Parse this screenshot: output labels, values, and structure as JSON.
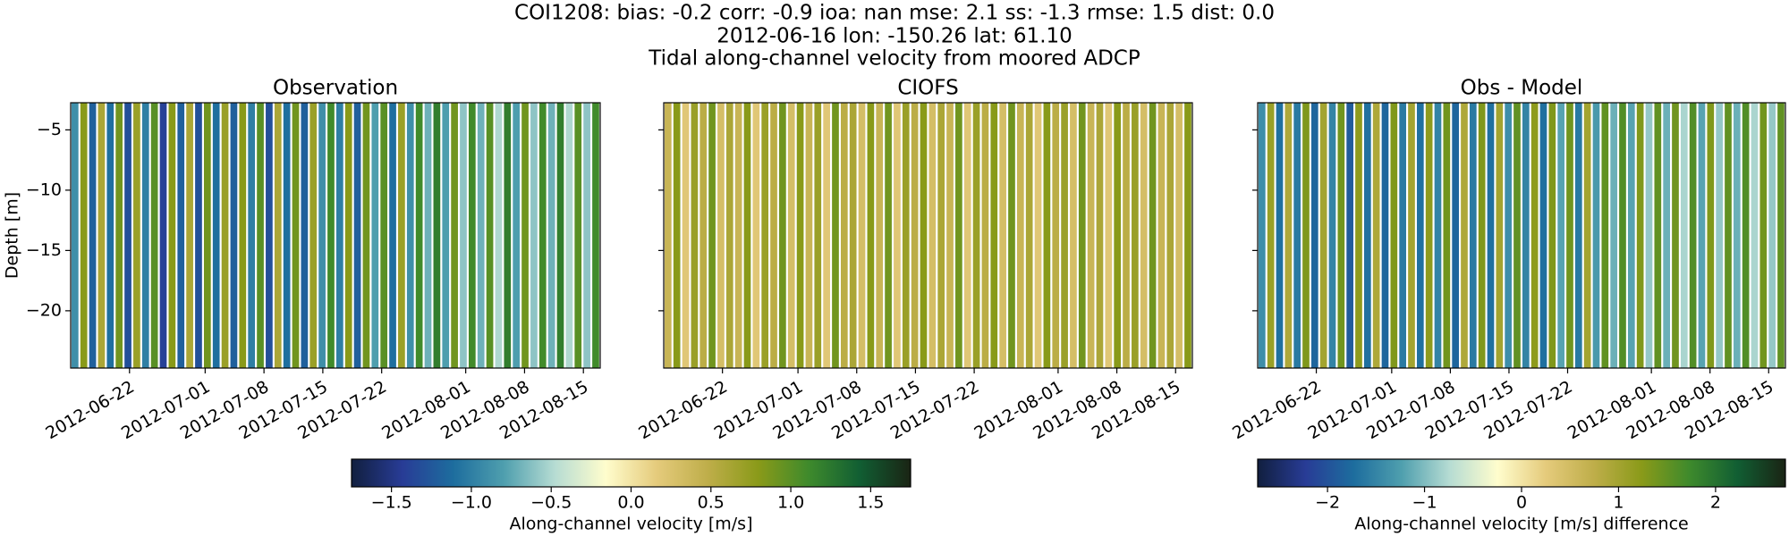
{
  "title": [
    "COI1208: bias: -0.2  corr: -0.9  ioa: nan  mse: 2.1  ss: -1.3  rmse: 1.5  dist: 0.0",
    "2012-06-16 lon: -150.26 lat: 61.10",
    "Tidal along-channel velocity from moored ADCP"
  ],
  "colormap": [
    "#111f3f",
    "#283c96",
    "#1d6d9e",
    "#4f9fae",
    "#b6dcd3",
    "#fffdcd",
    "#e5cb7c",
    "#bfae4a",
    "#8a9a19",
    "#3e8a2c",
    "#115e33",
    "#1a2414"
  ],
  "chart_data": [
    {
      "type": "heatmap",
      "title": "Observation",
      "ylabel": "Depth [m]",
      "xlim": [
        "2012-06-15",
        "2012-08-17"
      ],
      "xticks": [
        "2012-06-22",
        "2012-07-01",
        "2012-07-08",
        "2012-07-15",
        "2012-07-22",
        "2012-08-01",
        "2012-08-08",
        "2012-08-15"
      ],
      "ylim": [
        -24.75,
        -2.75
      ],
      "yticks": [
        {
          "value": -20,
          "label": "−20"
        },
        {
          "value": -15,
          "label": "−15"
        },
        {
          "value": -10,
          "label": "−10"
        },
        {
          "value": -5,
          "label": "−5"
        }
      ],
      "clim": [
        -1.75,
        1.75
      ],
      "clabel": "Along-channel velocity [m/s]",
      "cticks": [
        {
          "value": -1.5,
          "label": "−1.5"
        },
        {
          "value": -1,
          "label": "−1.0"
        },
        {
          "value": -0.5,
          "label": "−0.5"
        },
        {
          "value": 0,
          "label": "0.0"
        },
        0.5,
        {
          "value": 1,
          "label": "1.0"
        },
        1.5
      ],
      "values": [
        -0.9,
        0.8,
        -1.2,
        0.6,
        -1.1,
        0.9,
        -1.3,
        0.7,
        -1.0,
        1.0,
        -1.4,
        0.8,
        -1.2,
        0.6,
        -1.3,
        0.9,
        -1.1,
        0.7,
        -1.2,
        0.8,
        -1.0,
        1.0,
        -1.3,
        0.6,
        -1.1,
        0.9,
        -1.2,
        0.7,
        -0.9,
        1.1,
        -1.0,
        0.8,
        -1.2,
        0.9,
        -0.8,
        1.0,
        -1.1,
        0.7,
        -0.9,
        1.1,
        -0.7,
        1.2,
        -0.8,
        0.9,
        -0.6,
        1.1,
        -0.7,
        1.0,
        -0.5,
        1.2,
        -0.8,
        0.9,
        -0.6,
        1.1,
        -0.7,
        1.2,
        -0.5,
        1.0,
        -0.6,
        1.1
      ]
    },
    {
      "type": "heatmap",
      "title": "CIOFS",
      "xlim": [
        "2012-06-15",
        "2012-08-17"
      ],
      "xticks": [
        "2012-06-22",
        "2012-07-01",
        "2012-07-08",
        "2012-07-15",
        "2012-07-22",
        "2012-08-01",
        "2012-08-08",
        "2012-08-15"
      ],
      "ylim": [
        -24.75,
        -2.75
      ],
      "yticks": [
        -20,
        -15,
        -10,
        -5
      ],
      "clim": [
        -1.75,
        1.75
      ],
      "values": [
        0.4,
        0.8,
        0.2,
        0.7,
        0.5,
        0.9,
        0.3,
        0.6,
        0.4,
        0.8,
        0.2,
        0.7,
        0.5,
        0.9,
        0.3,
        0.8,
        0.4,
        0.7,
        0.2,
        0.9,
        0.5,
        0.6,
        0.3,
        0.8,
        0.4,
        0.9,
        0.2,
        0.7,
        0.5,
        0.8,
        0.3,
        0.6,
        0.4,
        0.9,
        0.2,
        0.7,
        0.5,
        0.8,
        0.3,
        0.9,
        0.4,
        0.6,
        0.2,
        0.8,
        0.5,
        0.7,
        0.3,
        0.9,
        0.4,
        0.6,
        0.2,
        0.8,
        0.5,
        0.7,
        0.3,
        0.9,
        0.4,
        0.6,
        0.3,
        0.8
      ]
    },
    {
      "type": "heatmap",
      "title": "Obs - Model",
      "xlim": [
        "2012-06-15",
        "2012-08-17"
      ],
      "xticks": [
        "2012-06-22",
        "2012-07-01",
        "2012-07-08",
        "2012-07-15",
        "2012-07-22",
        "2012-08-01",
        "2012-08-08",
        "2012-08-15"
      ],
      "ylim": [
        -24.75,
        -2.75
      ],
      "yticks": [
        -20,
        -15,
        -10,
        -5
      ],
      "clim": [
        -2.72,
        2.72
      ],
      "clabel": "Along-channel velocity [m/s] difference",
      "cticks": [
        {
          "value": -2,
          "label": "−2"
        },
        {
          "value": -1,
          "label": "−1"
        },
        0,
        1,
        2
      ],
      "values": [
        -1.4,
        1.1,
        -1.7,
        0.9,
        -1.6,
        1.3,
        -1.8,
        1.0,
        -1.5,
        1.4,
        -1.9,
        1.2,
        -1.7,
        0.9,
        -1.8,
        1.3,
        -1.6,
        1.0,
        -1.7,
        1.2,
        -1.5,
        1.4,
        -1.8,
        0.9,
        -1.6,
        1.3,
        -1.7,
        1.0,
        -1.4,
        1.5,
        -1.5,
        1.2,
        -1.7,
        1.3,
        -1.2,
        1.4,
        -1.6,
        1.0,
        -1.3,
        1.5,
        -1.1,
        1.6,
        -1.2,
        1.3,
        -0.9,
        1.5,
        -1.1,
        1.4,
        -0.8,
        1.6,
        -1.2,
        1.3,
        -0.9,
        1.5,
        -1.1,
        1.6,
        -0.8,
        1.4,
        -0.9,
        1.5
      ]
    }
  ]
}
